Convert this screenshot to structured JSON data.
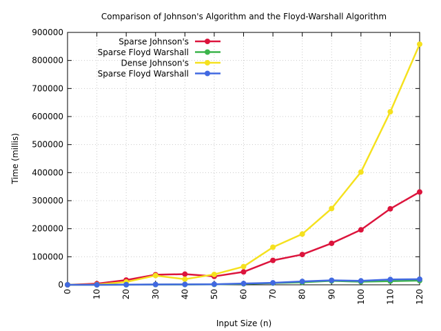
{
  "chart_data": {
    "type": "line",
    "title": "Comparison of Johnson's Algorithm and the Floyd-Warshall Algorithm",
    "xlabel": "Input Size (n)",
    "ylabel": "Time (millis)",
    "x": [
      0,
      10,
      20,
      30,
      40,
      50,
      60,
      70,
      80,
      90,
      100,
      110,
      120
    ],
    "xlim": [
      0,
      120
    ],
    "ylim": [
      0,
      900000
    ],
    "xticks": [
      "0",
      "10",
      "20",
      "30",
      "40",
      "50",
      "60",
      "70",
      "80",
      "90",
      "100",
      "110",
      "120"
    ],
    "yticks": [
      "0",
      "100000",
      "200000",
      "300000",
      "400000",
      "500000",
      "600000",
      "700000",
      "800000",
      "900000"
    ],
    "grid": true,
    "legend_position": "top-left",
    "series": [
      {
        "name": "Sparse Johnson's",
        "color": "#dc143c",
        "values": [
          0,
          4000,
          17000,
          36000,
          38000,
          30000,
          46000,
          87000,
          108000,
          148000,
          196000,
          271000,
          331000
        ]
      },
      {
        "name": "Sparse Floyd Warshall",
        "color": "#3cb44b",
        "values": [
          0,
          0,
          200,
          800,
          1000,
          1500,
          3500,
          6000,
          9000,
          14000,
          11000,
          13000,
          15000
        ]
      },
      {
        "name": "Dense Johnson's",
        "color": "#f5e11e",
        "values": [
          0,
          1000,
          10000,
          33000,
          20000,
          37000,
          65000,
          134000,
          181000,
          272000,
          402000,
          617000,
          858000
        ]
      },
      {
        "name": "Sparse Floyd Warshall",
        "color": "#4169e1",
        "values": [
          0,
          0,
          500,
          1200,
          1500,
          2000,
          4500,
          7000,
          12000,
          16000,
          14000,
          19000,
          20000
        ]
      }
    ]
  }
}
